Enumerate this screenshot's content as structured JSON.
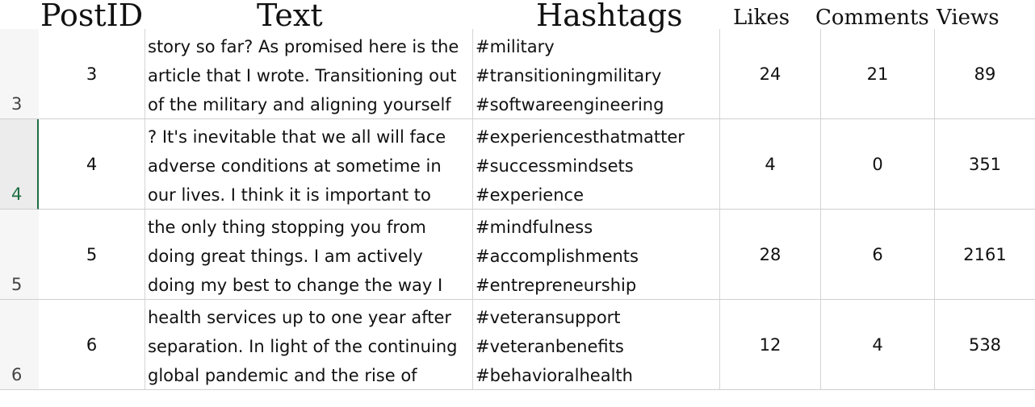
{
  "headers": {
    "postid": "PostID",
    "text": "Text",
    "hashtags": "Hashtags",
    "likes": "Likes",
    "comments": "Comments",
    "views": "Views"
  },
  "rows": [
    {
      "row_number": "3",
      "post_id": "3",
      "text_lines": [
        "story so far? As promised here is the",
        "article that I wrote. Transitioning out",
        "of the military and aligning yourself"
      ],
      "hashtags": [
        "#military",
        "#transitioningmilitary",
        "#softwareengineering"
      ],
      "likes": "24",
      "comments": "21",
      "views": "89"
    },
    {
      "row_number": "4",
      "post_id": "4",
      "text_lines": [
        "? It's inevitable that we all will face",
        "adverse conditions at sometime in",
        "our lives. I think it is important to"
      ],
      "hashtags": [
        "#experiencesthatmatter",
        "#successmindsets",
        "#experience"
      ],
      "likes": "4",
      "comments": "0",
      "views": "351"
    },
    {
      "row_number": "5",
      "post_id": "5",
      "text_lines": [
        "the only thing stopping you from",
        "doing great things. I am actively",
        "doing my best to change the way I"
      ],
      "hashtags": [
        "#mindfulness",
        "#accomplishments",
        "#entrepreneurship"
      ],
      "likes": "28",
      "comments": "6",
      "views": "2161"
    },
    {
      "row_number": "6",
      "post_id": "6",
      "text_lines": [
        "health services up to one year after",
        "separation. In light of the continuing",
        "global pandemic and the rise of"
      ],
      "hashtags": [
        "#veteransupport",
        "#veteranbenefits",
        "#behavioralhealth"
      ],
      "likes": "12",
      "comments": "4",
      "views": "538"
    }
  ],
  "colors": {
    "active_row_accent": "#1e6e42",
    "gridline": "#d4d4d4",
    "row_header_bg": "#f6f6f6"
  }
}
